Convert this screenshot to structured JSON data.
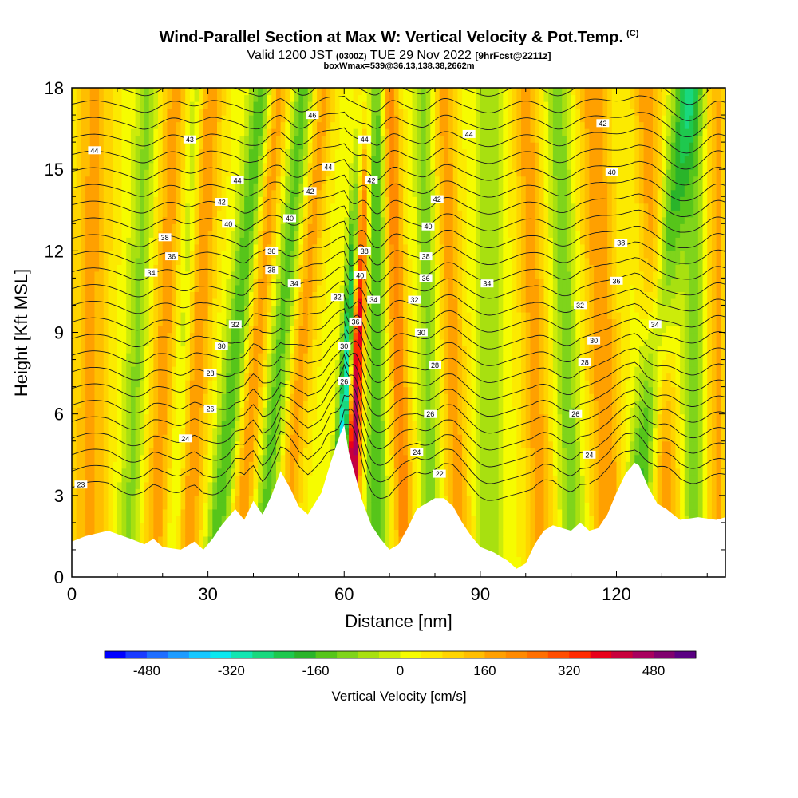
{
  "header": {
    "title": "Wind-Parallel Section at Max W: Vertical Velocity & Pot.Temp.",
    "copyright": "(C)",
    "valid_prefix": "Valid 1200 JST",
    "valid_utc": "(0300Z)",
    "valid_date": "TUE 29 Nov 2022",
    "forecast": "[9hrFcst@2211z]",
    "box_info": "boxWmax=539@36.13,138.38,2662m"
  },
  "chart_data": {
    "type": "heatmap",
    "title": "Wind-Parallel Section at Max W: Vertical Velocity & Pot.Temp.",
    "xlabel": "Distance [nm]",
    "ylabel": "Height [Kft MSL]",
    "xlim": [
      0,
      144
    ],
    "ylim": [
      0,
      18
    ],
    "x_ticks": [
      0,
      30,
      60,
      90,
      120
    ],
    "y_ticks": [
      0,
      3,
      6,
      9,
      12,
      15,
      18
    ],
    "colorbar": {
      "label": "Vertical Velocity [cm/s]",
      "tick_values": [
        -480,
        -320,
        -160,
        0,
        160,
        320,
        480
      ],
      "bins": [
        -560,
        -520,
        -480,
        -440,
        -400,
        -360,
        -320,
        -280,
        -240,
        -200,
        -160,
        -120,
        -80,
        -40,
        0,
        40,
        80,
        120,
        160,
        200,
        240,
        280,
        320,
        360,
        400,
        440,
        480,
        520,
        560
      ],
      "colors": [
        "#0000ff",
        "#1a3bff",
        "#1f6eff",
        "#1e9cff",
        "#16c8ff",
        "#0ae8f0",
        "#12e6b2",
        "#19d87e",
        "#1ec84e",
        "#2ab42a",
        "#56c51a",
        "#7fd41b",
        "#a8e010",
        "#ccec0a",
        "#f6fc00",
        "#fcea00",
        "#ffd400",
        "#ffbe00",
        "#ffa000",
        "#ff8a00",
        "#ff6f00",
        "#ff4d00",
        "#ff2a00",
        "#e8001a",
        "#c8003c",
        "#a8005e",
        "#80006e",
        "#5a0082"
      ]
    },
    "terrain_profile": {
      "x": [
        0,
        3,
        8,
        13,
        16,
        18,
        20,
        24,
        27,
        29,
        31,
        33,
        36,
        38,
        40,
        42,
        44,
        46,
        48,
        50,
        52,
        55,
        57,
        59,
        60,
        61,
        62,
        64,
        66,
        68,
        70,
        72,
        74,
        76,
        78,
        80,
        82,
        84,
        86,
        88,
        90,
        93,
        96,
        98,
        100,
        102,
        104,
        106,
        108,
        110,
        112,
        114,
        116,
        118,
        120,
        122,
        124,
        125,
        127,
        129,
        131,
        134,
        138,
        142,
        144
      ],
      "height": [
        1.3,
        1.5,
        1.7,
        1.4,
        1.2,
        1.4,
        1.1,
        1.0,
        1.3,
        1.0,
        1.4,
        1.9,
        2.5,
        2.1,
        2.8,
        2.3,
        3.0,
        3.9,
        3.3,
        2.6,
        2.3,
        3.1,
        4.2,
        5.2,
        5.6,
        4.6,
        4.0,
        2.8,
        1.9,
        1.4,
        1.0,
        1.2,
        1.8,
        2.5,
        2.7,
        2.9,
        2.9,
        2.6,
        2.0,
        1.5,
        1.1,
        0.9,
        0.6,
        0.3,
        0.5,
        1.2,
        1.7,
        1.9,
        1.8,
        1.7,
        2.0,
        1.7,
        1.8,
        2.3,
        3.1,
        3.8,
        4.2,
        4.1,
        3.3,
        2.7,
        2.5,
        2.1,
        2.2,
        2.1,
        2.2
      ]
    },
    "updraft_bands": [
      {
        "center_x": 4,
        "slope": 0.05,
        "amplitude": 140,
        "width": 4
      },
      {
        "center_x": 19,
        "slope": 0.25,
        "amplitude": 150,
        "width": 3
      },
      {
        "center_x": 26,
        "slope": 0.3,
        "amplitude": 170,
        "width": 3
      },
      {
        "center_x": 38,
        "slope": 0.5,
        "amplitude": 160,
        "width": 2.5
      },
      {
        "center_x": 48,
        "slope": 0.5,
        "amplitude": 150,
        "width": 2.5
      },
      {
        "center_x": 61.5,
        "slope": 0.2,
        "amplitude": 520,
        "width": 1.6
      },
      {
        "center_x": 73,
        "slope": -0.2,
        "amplitude": 200,
        "width": 2
      },
      {
        "center_x": 85,
        "slope": -0.2,
        "amplitude": 150,
        "width": 2.5
      },
      {
        "center_x": 103,
        "slope": -0.2,
        "amplitude": 150,
        "width": 3
      },
      {
        "center_x": 118,
        "slope": -0.2,
        "amplitude": 170,
        "width": 3.5
      },
      {
        "center_x": 131,
        "slope": -0.3,
        "amplitude": 160,
        "width": 3
      },
      {
        "center_x": 142,
        "slope": 0.0,
        "amplitude": 140,
        "width": 2
      }
    ],
    "downdraft_bands": [
      {
        "center_x": 13,
        "slope": 0.25,
        "amplitude": -120,
        "width": 2.5
      },
      {
        "center_x": 23,
        "slope": 0.3,
        "amplitude": -110,
        "width": 2
      },
      {
        "center_x": 33,
        "slope": 0.6,
        "amplitude": -190,
        "width": 2.5
      },
      {
        "center_x": 43,
        "slope": 0.55,
        "amplitude": -170,
        "width": 2.5
      },
      {
        "center_x": 59.2,
        "slope": 0.35,
        "amplitude": -480,
        "width": 1.5
      },
      {
        "center_x": 67,
        "slope": 0.0,
        "amplitude": -200,
        "width": 2
      },
      {
        "center_x": 79,
        "slope": -0.1,
        "amplitude": -130,
        "width": 2
      },
      {
        "center_x": 92,
        "slope": 0.0,
        "amplitude": -110,
        "width": 2.5
      },
      {
        "center_x": 110,
        "slope": -0.2,
        "amplitude": -140,
        "width": 2.5
      },
      {
        "center_x": 125,
        "slope": 0.7,
        "amplitude": -200,
        "width": 3
      },
      {
        "center_x": 137,
        "slope": 0.0,
        "amplitude": -130,
        "width": 2.5
      }
    ],
    "theta_contours": {
      "unit": "K",
      "levels": [
        22,
        23,
        24,
        25,
        26,
        27,
        28,
        29,
        30,
        31,
        32,
        33,
        34,
        35,
        36,
        37,
        38,
        39,
        40,
        41,
        42,
        43,
        44,
        45,
        46
      ],
      "labels": [
        {
          "x": 2,
          "y": 3.4,
          "text": "23"
        },
        {
          "x": 25,
          "y": 5.1,
          "text": "24"
        },
        {
          "x": 30.5,
          "y": 6.2,
          "text": "26"
        },
        {
          "x": 30.5,
          "y": 7.5,
          "text": "28"
        },
        {
          "x": 33,
          "y": 8.5,
          "text": "30"
        },
        {
          "x": 36,
          "y": 9.3,
          "text": "32"
        },
        {
          "x": 49,
          "y": 10.8,
          "text": "34"
        },
        {
          "x": 17.5,
          "y": 11.2,
          "text": "34"
        },
        {
          "x": 22,
          "y": 11.8,
          "text": "36"
        },
        {
          "x": 20.5,
          "y": 12.5,
          "text": "38"
        },
        {
          "x": 44,
          "y": 11.3,
          "text": "38"
        },
        {
          "x": 44,
          "y": 12.0,
          "text": "36"
        },
        {
          "x": 34.5,
          "y": 13.0,
          "text": "40"
        },
        {
          "x": 48,
          "y": 13.2,
          "text": "40"
        },
        {
          "x": 33,
          "y": 13.8,
          "text": "42"
        },
        {
          "x": 52.5,
          "y": 14.2,
          "text": "42"
        },
        {
          "x": 36.5,
          "y": 14.6,
          "text": "44"
        },
        {
          "x": 26,
          "y": 16.1,
          "text": "43"
        },
        {
          "x": 53,
          "y": 17.0,
          "text": "46"
        },
        {
          "x": 5,
          "y": 15.7,
          "text": "44"
        },
        {
          "x": 56.5,
          "y": 15.1,
          "text": "44"
        },
        {
          "x": 64.5,
          "y": 16.1,
          "text": "44"
        },
        {
          "x": 66,
          "y": 14.6,
          "text": "42"
        },
        {
          "x": 64.5,
          "y": 12.0,
          "text": "38"
        },
        {
          "x": 63.5,
          "y": 11.1,
          "text": "40"
        },
        {
          "x": 58.5,
          "y": 10.3,
          "text": "32"
        },
        {
          "x": 62.5,
          "y": 9.4,
          "text": "36"
        },
        {
          "x": 66.5,
          "y": 10.2,
          "text": "34"
        },
        {
          "x": 60,
          "y": 8.5,
          "text": "30"
        },
        {
          "x": 60,
          "y": 7.2,
          "text": "26"
        },
        {
          "x": 75.5,
          "y": 10.2,
          "text": "32"
        },
        {
          "x": 77,
          "y": 9.0,
          "text": "30"
        },
        {
          "x": 78,
          "y": 11.0,
          "text": "36"
        },
        {
          "x": 78,
          "y": 11.8,
          "text": "38"
        },
        {
          "x": 78.5,
          "y": 12.9,
          "text": "40"
        },
        {
          "x": 80.5,
          "y": 13.9,
          "text": "42"
        },
        {
          "x": 87.5,
          "y": 16.3,
          "text": "44"
        },
        {
          "x": 91.5,
          "y": 10.8,
          "text": "34"
        },
        {
          "x": 80,
          "y": 7.8,
          "text": "28"
        },
        {
          "x": 79,
          "y": 6.0,
          "text": "26"
        },
        {
          "x": 76,
          "y": 4.6,
          "text": "24"
        },
        {
          "x": 81,
          "y": 3.8,
          "text": "22"
        },
        {
          "x": 112,
          "y": 10.0,
          "text": "32"
        },
        {
          "x": 115,
          "y": 8.7,
          "text": "30"
        },
        {
          "x": 113,
          "y": 7.9,
          "text": "28"
        },
        {
          "x": 111,
          "y": 6.0,
          "text": "26"
        },
        {
          "x": 114,
          "y": 4.5,
          "text": "24"
        },
        {
          "x": 120,
          "y": 10.9,
          "text": "36"
        },
        {
          "x": 121,
          "y": 12.3,
          "text": "38"
        },
        {
          "x": 119,
          "y": 14.9,
          "text": "40"
        },
        {
          "x": 117,
          "y": 16.7,
          "text": "42"
        },
        {
          "x": 128.5,
          "y": 9.3,
          "text": "34"
        }
      ]
    }
  },
  "legend": {
    "label": "Vertical Velocity [cm/s]"
  }
}
